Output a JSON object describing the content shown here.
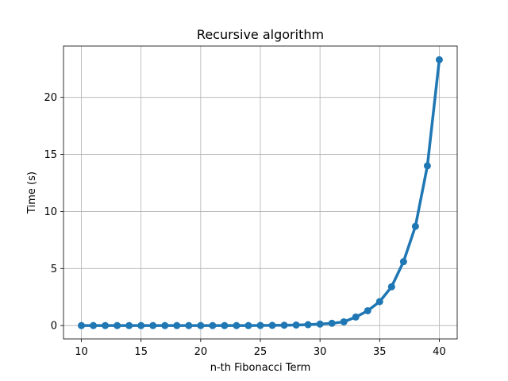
{
  "chart_data": {
    "type": "line",
    "title": "Recursive algorithm",
    "xlabel": "n-th Fibonacci Term",
    "ylabel": "Time (s)",
    "grid": true,
    "xlim": [
      8.5,
      41.5
    ],
    "ylim": [
      -1.17,
      24.5
    ],
    "x_ticks": [
      10,
      15,
      20,
      25,
      30,
      35,
      40
    ],
    "y_ticks": [
      0,
      5,
      10,
      15,
      20
    ],
    "series": [
      {
        "color": "#1f77b4",
        "x": [
          10,
          11,
          12,
          13,
          14,
          15,
          16,
          17,
          18,
          19,
          20,
          21,
          22,
          23,
          24,
          25,
          26,
          27,
          28,
          29,
          30,
          31,
          32,
          33,
          34,
          35,
          36,
          37,
          38,
          39,
          40
        ],
        "y": [
          0.0,
          0.0,
          0.0,
          0.0,
          0.0,
          0.0,
          0.0,
          0.0,
          0.0,
          0.0,
          0.0,
          0.0,
          0.0,
          0.0,
          0.0,
          0.01,
          0.02,
          0.03,
          0.05,
          0.08,
          0.13,
          0.2,
          0.33,
          0.75,
          1.3,
          2.1,
          3.4,
          5.6,
          8.7,
          14.0,
          23.3
        ]
      }
    ]
  }
}
